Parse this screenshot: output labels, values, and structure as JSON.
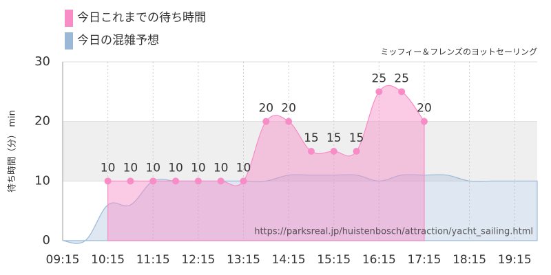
{
  "chart_data": {
    "type": "area",
    "subtitle": "ミッフィー＆フレンズのヨットセーリング",
    "y_label": "待ち時間（分） min",
    "watermark": "https://parksreal.jp/huistenbosch/attraction/yacht_sailing.html",
    "xlim": [
      "09:15",
      "19:45"
    ],
    "xticks": [
      "09:15",
      "10:15",
      "11:15",
      "12:15",
      "13:15",
      "14:15",
      "15:15",
      "16:15",
      "17:15",
      "18:15",
      "19:15"
    ],
    "ylim": [
      0,
      30
    ],
    "yticks": [
      0,
      10,
      20,
      30
    ],
    "band": [
      10,
      20
    ],
    "grid": true,
    "legend": "top-left",
    "series": [
      {
        "name": "今日の混雑予想",
        "color": "#9bb9d6",
        "x": [
          "09:15",
          "09:45",
          "10:15",
          "10:45",
          "11:15",
          "11:45",
          "12:15",
          "12:45",
          "13:15",
          "13:45",
          "14:15",
          "14:45",
          "15:15",
          "15:45",
          "16:15",
          "16:45",
          "17:15",
          "17:45",
          "18:15",
          "18:45",
          "19:15",
          "19:45"
        ],
        "values": [
          0,
          0,
          6,
          6,
          10,
          10,
          10,
          10,
          10,
          10,
          11,
          11,
          11,
          11,
          10,
          11,
          11,
          11,
          10,
          10,
          10,
          10
        ]
      },
      {
        "name": "今日これまでの待ち時間",
        "color": "#f78cc6",
        "markers": true,
        "x": [
          "10:15",
          "10:45",
          "11:15",
          "11:45",
          "12:15",
          "12:45",
          "13:15",
          "13:45",
          "14:15",
          "14:45",
          "15:15",
          "15:45",
          "16:15",
          "16:45",
          "17:15"
        ],
        "values": [
          10,
          10,
          10,
          10,
          10,
          10,
          10,
          20,
          20,
          15,
          15,
          15,
          25,
          25,
          20
        ]
      }
    ]
  }
}
